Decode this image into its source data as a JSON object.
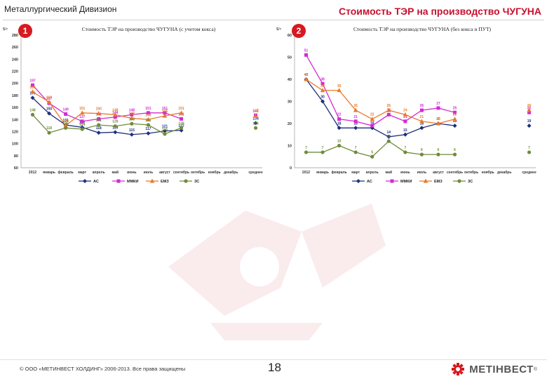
{
  "header": {
    "division": "Металлургический Дивизион",
    "title": "Стоимость ТЭР на производство ЧУГУНА"
  },
  "footer": {
    "copyright": "© ООО «МЕТИНВЕСТ ХОЛДИНГ» 2006-2013. Все права защищены",
    "page_number": "18",
    "logo_text": "МЕТІНВЕСТ",
    "logo_reg": "®"
  },
  "colors": {
    "AC": "#1f2f7a",
    "MMKI": "#d42ad4",
    "EMZ": "#e8792a",
    "ZS": "#6f8c3a",
    "accent": "#d71920"
  },
  "chart_data": [
    {
      "badge": "1",
      "type": "line",
      "title": "Стоимость ТЭР на производство ЧУГУНА (с учетом кокса)",
      "ylabel": "$/т",
      "categories": [
        "2012",
        "январь",
        "февраль",
        "март",
        "апрель",
        "май",
        "июнь",
        "июль",
        "август",
        "сентябрь",
        "октябрь",
        "ноябрь",
        "декабрь"
      ],
      "extra_category": "среднее",
      "ylim": [
        60,
        280
      ],
      "yticks": [
        60,
        80,
        100,
        120,
        140,
        160,
        180,
        200,
        220,
        240,
        260,
        280
      ],
      "series": [
        {
          "name": "АС",
          "key": "AC",
          "marker": "diamond",
          "values": [
            176,
            150,
            131,
            127,
            118,
            119,
            115,
            117,
            121,
            122,
            null,
            null,
            null
          ],
          "average": 134
        },
        {
          "name": "ММКИ",
          "key": "MMKI",
          "marker": "square",
          "values": [
            197,
            167,
            149,
            137,
            141,
            144,
            148,
            151,
            151,
            141,
            null,
            null,
            null
          ],
          "average": 147
        },
        {
          "name": "ЕМЗ",
          "key": "EMZ",
          "marker": "triangle",
          "values": [
            186,
            169,
            130,
            151,
            150,
            148,
            142,
            140,
            146,
            151,
            null,
            null,
            null
          ],
          "average": 146
        },
        {
          "name": "ЗС",
          "key": "ZS",
          "marker": "circle",
          "values": [
            148,
            118,
            126,
            124,
            131,
            129,
            133,
            131,
            116,
            126,
            null,
            null,
            null
          ],
          "average": 126
        }
      ]
    },
    {
      "badge": "2",
      "type": "line",
      "title": "Стоимость ТЭР на производство ЧУГУНА (без кокса и ПУТ)",
      "ylabel": "$/т",
      "categories": [
        "2012",
        "январь",
        "февраль",
        "март",
        "апрель",
        "май",
        "июнь",
        "июль",
        "август",
        "сентябрь",
        "октябрь",
        "ноябрь",
        "декабрь"
      ],
      "extra_category": "среднее",
      "ylim": [
        0,
        60
      ],
      "yticks": [
        0,
        10,
        20,
        30,
        40,
        50,
        60
      ],
      "series": [
        {
          "name": "АС",
          "key": "AC",
          "marker": "diamond",
          "values": [
            40,
            30,
            18,
            18,
            18,
            14,
            15,
            18,
            20,
            19,
            null,
            null,
            null
          ],
          "average": 19
        },
        {
          "name": "ММКИ",
          "key": "MMKI",
          "marker": "square",
          "values": [
            51,
            38,
            22,
            21,
            19,
            24,
            21,
            26,
            27,
            25,
            null,
            null,
            null
          ],
          "average": 25
        },
        {
          "name": "ЕМЗ",
          "key": "EMZ",
          "marker": "triangle",
          "values": [
            40,
            35,
            35,
            26,
            22,
            26,
            24,
            21,
            20,
            22,
            null,
            null,
            null
          ],
          "average": 26
        },
        {
          "name": "ЗС",
          "key": "ZS",
          "marker": "circle",
          "values": [
            7,
            7,
            10,
            7,
            5,
            12,
            7,
            6,
            6,
            6,
            null,
            null,
            null
          ],
          "average": 7
        }
      ]
    }
  ]
}
